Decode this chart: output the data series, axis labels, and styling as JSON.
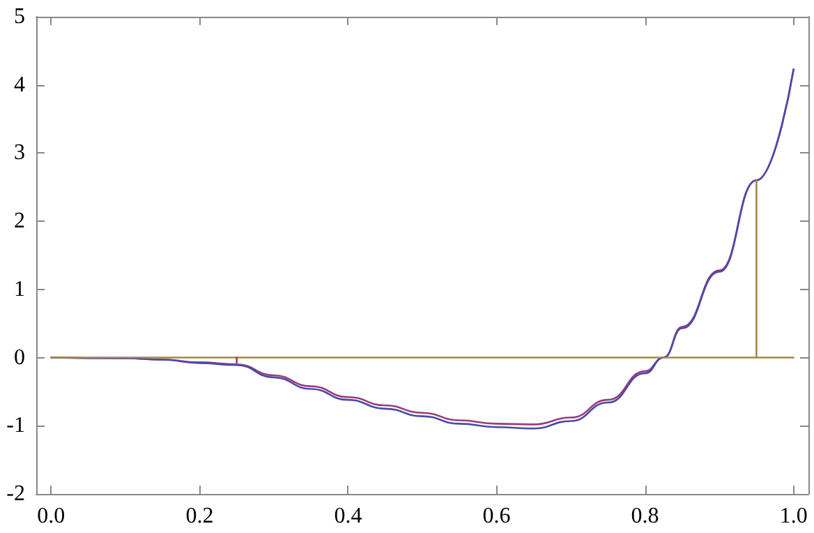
{
  "chart_data": {
    "type": "line",
    "xlim": [
      -0.02,
      1.02
    ],
    "xticks": [
      {
        "value": 0,
        "label": "0.0"
      },
      {
        "value": 0.2,
        "label": "0.2"
      },
      {
        "value": 0.4,
        "label": "0.4"
      },
      {
        "value": 0.6,
        "label": "0.6"
      },
      {
        "value": 0.8,
        "label": "0.8"
      },
      {
        "value": 1,
        "label": "1.0"
      }
    ],
    "ylim": [
      -2,
      5
    ],
    "yticks": [
      -2,
      -1,
      0,
      1,
      2,
      3,
      4,
      5
    ],
    "marker": "none",
    "line_style": "solid",
    "series": [
      {
        "color": "#9b3c78",
        "x": [
          0,
          0.1,
          0.15,
          0.2,
          0.25,
          0.3,
          0.35,
          0.4,
          0.45,
          0.5,
          0.55,
          0.6,
          0.65,
          0.7,
          0.75,
          0.8,
          0.825,
          0.85,
          0.9,
          0.95,
          1
        ],
        "values": [
          0,
          -0.01,
          -0.03,
          -0.07,
          -0.1,
          -0.26,
          -0.42,
          -0.58,
          -0.7,
          -0.81,
          -0.92,
          -0.97,
          -0.98,
          -0.88,
          -0.62,
          -0.2,
          0,
          0.45,
          1.28,
          2.6,
          4.23
        ]
      },
      {
        "color": "#4a4aaa",
        "x": [
          0,
          0.1,
          0.15,
          0.2,
          0.25,
          0.3,
          0.35,
          0.4,
          0.45,
          0.5,
          0.55,
          0.6,
          0.65,
          0.7,
          0.75,
          0.8,
          0.825,
          0.85,
          0.9,
          0.95,
          1
        ],
        "values": [
          0,
          -0.01,
          -0.03,
          -0.08,
          -0.11,
          -0.29,
          -0.46,
          -0.62,
          -0.75,
          -0.86,
          -0.97,
          -1.02,
          -1.04,
          -0.93,
          -0.66,
          -0.23,
          0,
          0.43,
          1.26,
          2.6,
          4.23
        ]
      },
      {
        "color": "#a08a48",
        "x": [
          0,
          0.95,
          0.95,
          0.95,
          1
        ],
        "values": [
          0,
          0,
          2.6,
          0,
          0
        ]
      },
      {
        "color": "#9b3c78",
        "x": [
          0.25,
          0.25
        ],
        "values": [
          0,
          -0.1
        ]
      }
    ]
  }
}
